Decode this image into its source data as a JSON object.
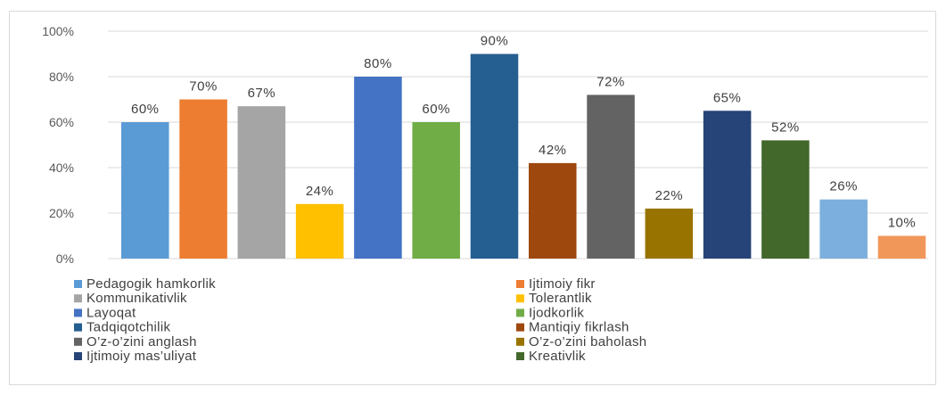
{
  "chart_data": {
    "type": "bar",
    "title": "",
    "xlabel": "",
    "ylabel": "",
    "ylim": [
      0,
      100
    ],
    "yticks": [
      "0%",
      "20%",
      "40%",
      "60%",
      "80%",
      "100%"
    ],
    "grid": true,
    "legend_position": "bottom",
    "bars": [
      {
        "name": "Pedagogik hamkorlik",
        "value": 60,
        "label": "60%",
        "color": "#5B9BD5"
      },
      {
        "name": "Ijtimoiy fikr",
        "value": 70,
        "label": "70%",
        "color": "#ED7D31"
      },
      {
        "name": "Kommunikativlik",
        "value": 67,
        "label": "67%",
        "color": "#A5A5A5"
      },
      {
        "name": "Tolerantlik",
        "value": 24,
        "label": "24%",
        "color": "#FFC000"
      },
      {
        "name": "Layoqat",
        "value": 80,
        "label": "80%",
        "color": "#4472C4"
      },
      {
        "name": "Ijodkorlik",
        "value": 60,
        "label": "60%",
        "color": "#70AD47"
      },
      {
        "name": "Tadqiqotchilik",
        "value": 90,
        "label": "90%",
        "color": "#255E91"
      },
      {
        "name": "Mantiqiy fikrlash",
        "value": 42,
        "label": "42%",
        "color": "#9E480E"
      },
      {
        "name": "O’z-o’zini anglash",
        "value": 72,
        "label": "72%",
        "color": "#636363"
      },
      {
        "name": "O’z-o’zini baholash",
        "value": 22,
        "label": "22%",
        "color": "#997300"
      },
      {
        "name": "Ijtimoiy mas’uliyat",
        "value": 65,
        "label": "65%",
        "color": "#264478"
      },
      {
        "name": "Kreativlik",
        "value": 52,
        "label": "52%",
        "color": "#43682B"
      },
      {
        "name": "",
        "value": 26,
        "label": "26%",
        "color": "#7CAFDD"
      },
      {
        "name": "",
        "value": 10,
        "label": "10%",
        "color": "#F1975A"
      }
    ]
  }
}
